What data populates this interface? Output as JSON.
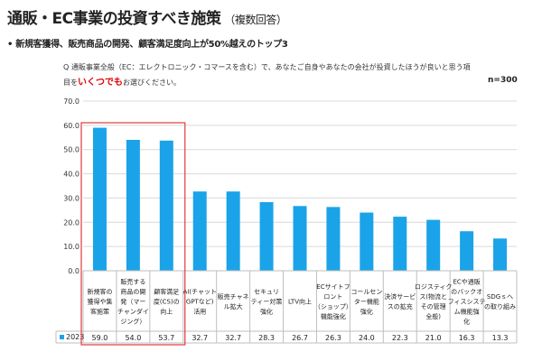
{
  "title": {
    "main": "通販・EC事業の投資すべき施策",
    "sub": "（複数回答）"
  },
  "headline": "•  新規客獲得、販売商品の開発、顧客満足度向上が50%越えのトップ3",
  "question": {
    "line1": "Q  通販事業全般（EC：エレクトロニック・コマースを含む）で、あなたご自身やあなたの会社が投資したほうが良いと思う項",
    "line2_before": "目を",
    "line2_emphasis": "いくつでも",
    "line2_after": "お選びください。"
  },
  "sample_size": "n=300",
  "colors": {
    "bar": "#1aa3e8",
    "highlight_box": "#e23a3a",
    "grid": "#d9d9d9"
  },
  "chart_data": {
    "type": "bar",
    "series_name": "2023",
    "ylim": [
      0,
      70
    ],
    "yticks": [
      "0.0",
      "10.0",
      "20.0",
      "30.0",
      "40.0",
      "50.0",
      "60.0",
      "70.0"
    ],
    "categories": [
      [
        "新規客の",
        "獲得や集",
        "客施策"
      ],
      [
        "販売する",
        "商品の開",
        "発（マー",
        "チャンダイ",
        "ジング）"
      ],
      [
        "顧客満足",
        "度(CS)の",
        "向上"
      ],
      [
        "AI(チャット",
        "GPTなど)",
        "活用"
      ],
      [
        "販売チャネ",
        "ル拡大"
      ],
      [
        "セキュリ",
        "ティー対策",
        "強化"
      ],
      [
        "LTV向上"
      ],
      [
        "ECサイトフ",
        "ロント",
        "（ショップ）",
        "機能強化"
      ],
      [
        "コールセン",
        "ター機能",
        "強化"
      ],
      [
        "決済サービ",
        "スの拡充"
      ],
      [
        "ロジスティク",
        "ス(物流と",
        "その管理",
        "全般)"
      ],
      [
        "ECや通販",
        "のバックオ",
        "フィスシステ",
        "ム機能強",
        "化"
      ],
      [
        "SDGｓへ",
        "の取り組み"
      ]
    ],
    "values": [
      59.0,
      54.0,
      53.7,
      32.7,
      32.7,
      28.3,
      26.7,
      26.3,
      24.0,
      22.3,
      21.0,
      16.3,
      13.3
    ],
    "value_labels": [
      "59.0",
      "54.0",
      "53.7",
      "32.7",
      "32.7",
      "28.3",
      "26.7",
      "26.3",
      "24.0",
      "22.3",
      "21.0",
      "16.3",
      "13.3"
    ],
    "highlighted_categories": 3
  }
}
